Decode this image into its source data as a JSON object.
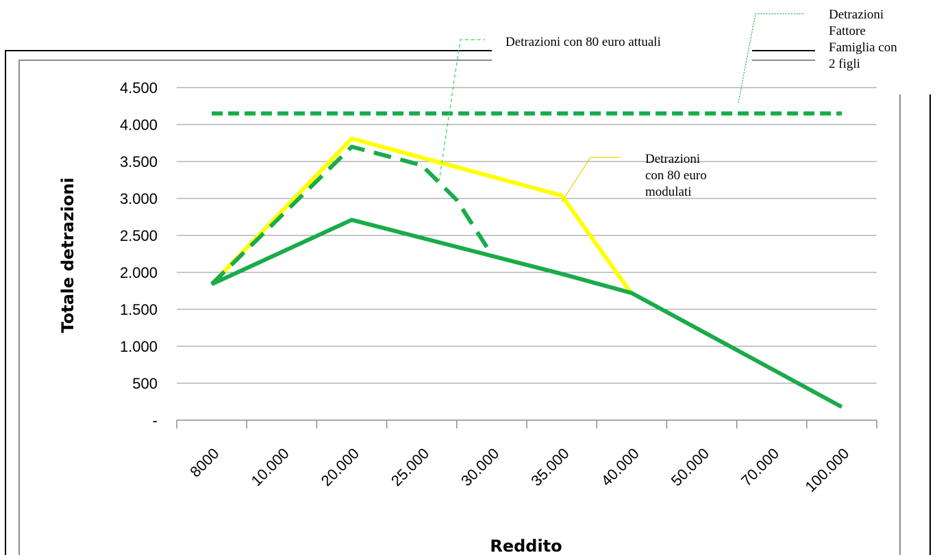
{
  "colors": {
    "green": "#1aab4a",
    "yellow": "#ffff00",
    "grid": "#8c8c8c",
    "frame": "#000000"
  },
  "chart_data": {
    "type": "line",
    "categories": [
      "8000",
      "10.000",
      "20.000",
      "25.000",
      "30.000",
      "35.000",
      "40.000",
      "50.000",
      "70.000",
      "100.000"
    ],
    "ylabel": "Totale detrazioni",
    "xlabel": "Reddito",
    "ylim": [
      0,
      4500
    ],
    "y_ticks": [
      "-",
      "500",
      "1.000",
      "1.500",
      "2.000",
      "2.500",
      "3.000",
      "3.500",
      "4.000",
      "4.500"
    ],
    "grid": true,
    "series": [
      {
        "name": "Detrazioni Fattore Famiglia con 2 figli",
        "style": "dashed",
        "color": "#1aab4a",
        "values": [
          4150,
          4150,
          4150,
          4150,
          4150,
          4150,
          4150,
          4150,
          4150,
          4150
        ]
      },
      {
        "name": "Detrazioni con 80 euro modulati",
        "style": "solid",
        "color": "#ffff00",
        "values": [
          1840,
          null,
          3810,
          null,
          null,
          3040,
          1710,
          null,
          null,
          null
        ]
      },
      {
        "name": "Detrazioni con 80 euro attuali",
        "style": "dashed",
        "color": "#1aab4a",
        "values": [
          1840,
          null,
          3700,
          null,
          null,
          null,
          null,
          null,
          null,
          null
        ],
        "extra_points": [
          {
            "x": 3.0,
            "y": 3450
          },
          {
            "x": 3.5,
            "y": 2980
          },
          {
            "x": 4.0,
            "y": 2240
          }
        ]
      },
      {
        "name": "",
        "style": "solid",
        "color": "#1aab4a",
        "values": [
          1840,
          null,
          2710,
          null,
          null,
          1980,
          1720,
          null,
          null,
          180
        ]
      }
    ],
    "annotations": [
      {
        "key": "ff",
        "lines": [
          "Detrazioni",
          "Fattore",
          "Famiglia con",
          "2 figli"
        ]
      },
      {
        "key": "attuali",
        "lines": [
          "Detrazioni con 80 euro attuali"
        ]
      },
      {
        "key": "modulati",
        "lines": [
          "Detrazioni",
          "con 80 euro",
          "modulati"
        ]
      }
    ]
  }
}
